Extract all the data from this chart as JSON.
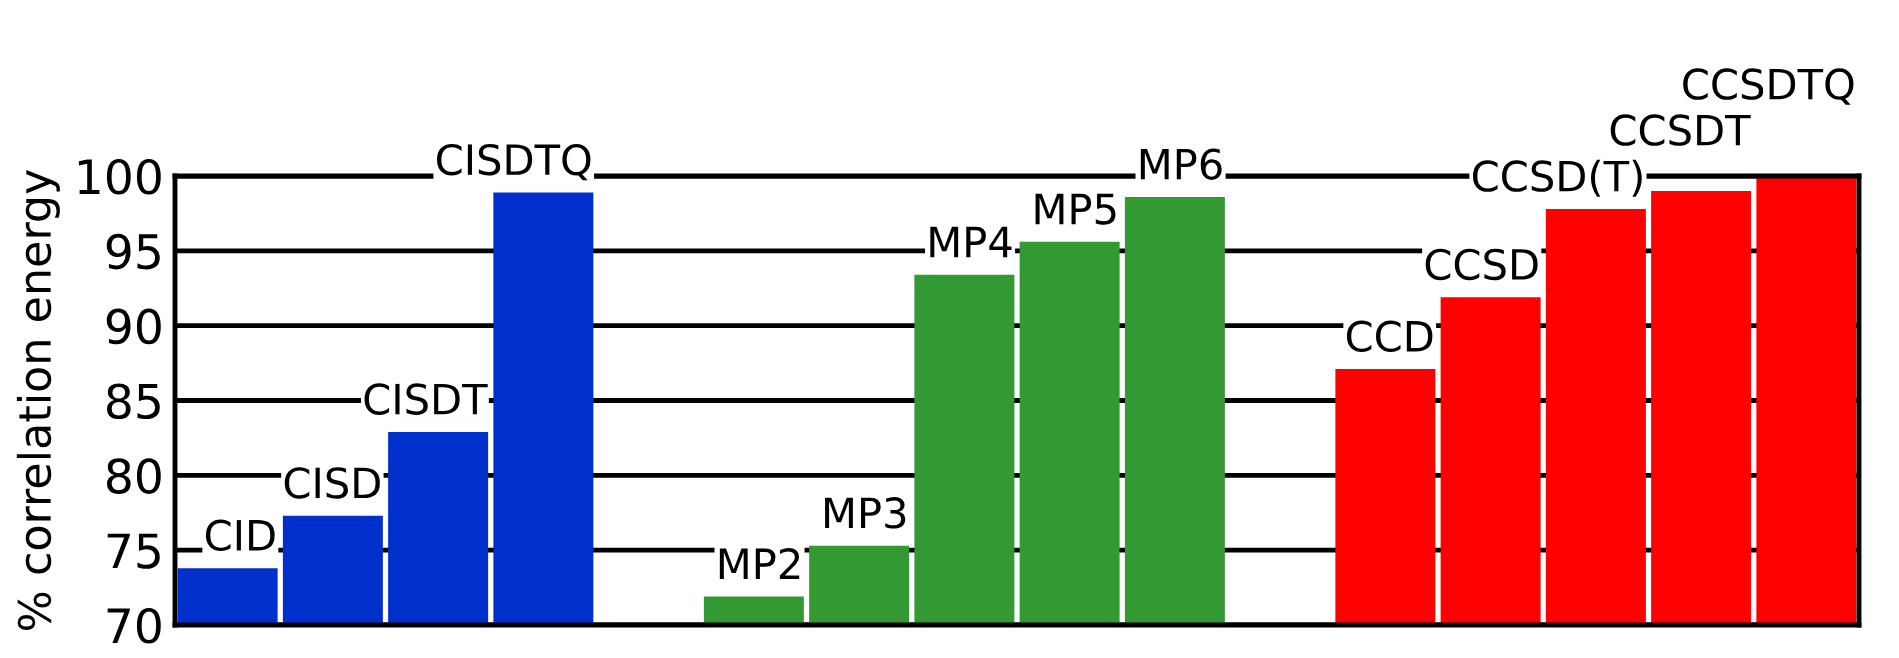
{
  "chart_data": {
    "type": "bar",
    "ylabel": "% correlation energy",
    "categories": [
      null,
      null,
      null,
      null,
      null,
      null,
      null,
      null,
      null,
      null,
      null,
      null,
      null,
      null,
      null,
      null
    ],
    "value_labels": [
      "CID",
      "CISD",
      "CISDT",
      "CISDTQ",
      null,
      "MP2",
      "MP3",
      "MP4",
      "MP5",
      "MP6",
      null,
      "CCD",
      "CCSD",
      "CCSD(T)",
      "CCSDT",
      "CCSDTQ"
    ],
    "values": [
      73.8,
      77.3,
      82.9,
      98.9,
      null,
      71.9,
      75.3,
      93.4,
      95.6,
      98.6,
      null,
      87.1,
      91.9,
      97.8,
      99.0,
      100
    ],
    "colors": [
      "#0030cc",
      "#0030cc",
      "#0030cc",
      "#0030cc",
      null,
      "#339933",
      "#339933",
      "#339933",
      "#339933",
      "#339933",
      null,
      "#ff0000",
      "#ff0000",
      "#ff0000",
      "#ff0000",
      "#ff0000"
    ],
    "ylim": [
      70,
      100
    ],
    "yticks": [
      70,
      75,
      80,
      85,
      90,
      95,
      100
    ],
    "grid": "y",
    "tick_labels": "y"
  }
}
